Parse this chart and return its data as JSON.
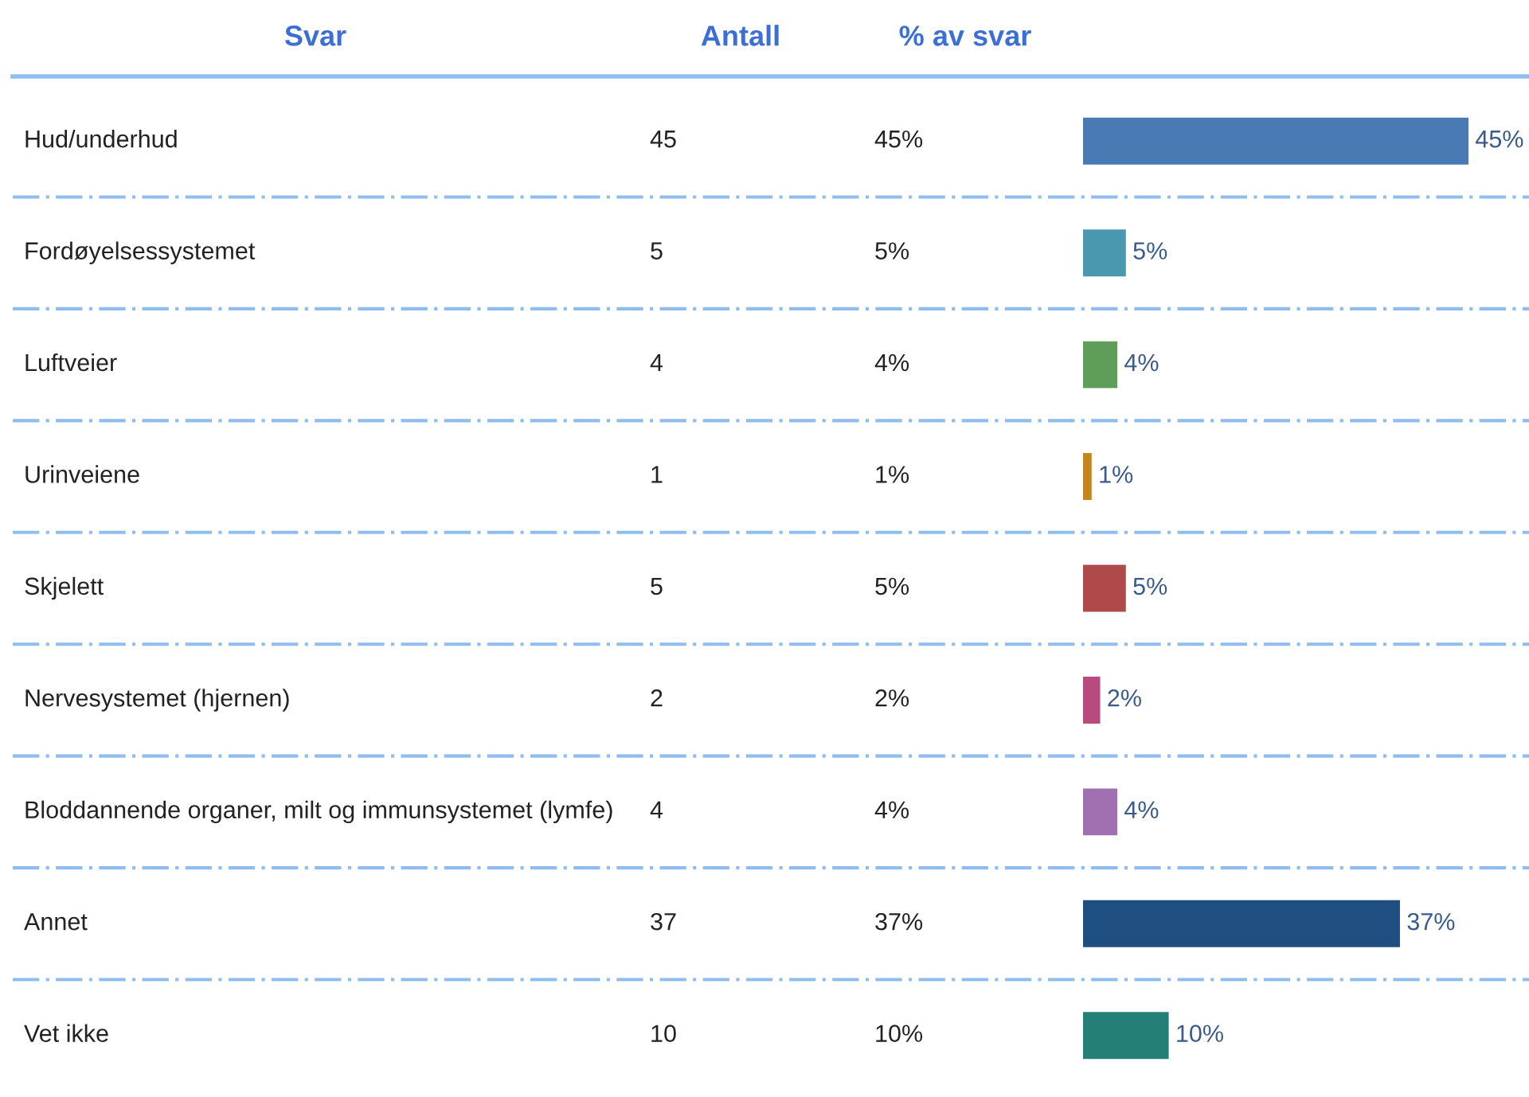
{
  "chart_data": {
    "type": "bar",
    "orientation": "horizontal",
    "ylabel": "Svar",
    "annotations": [
      "Antall",
      "% av svar",
      "45",
      "5",
      "4",
      "1",
      "5",
      "2",
      "4",
      "37",
      "10"
    ],
    "categories": [
      "Hud/underhud",
      "Fordøyelsessystemet",
      "Luftveier",
      "Urinveiene",
      "Skjelett",
      "Nervesystemet (hjernen)",
      "Bloddannende organer, milt og immunsystemet (lymfe)",
      "Annet",
      "Vet ikke"
    ],
    "values": [
      45,
      5,
      4,
      1,
      5,
      2,
      4,
      37,
      10
    ],
    "value_labels": [
      "45%",
      "5%",
      "4%",
      "1%",
      "5%",
      "2%",
      "4%",
      "37%",
      "10%"
    ],
    "colors": [
      "#4a7ab3",
      "#4a97b0",
      "#5e9e5a",
      "#c4851c",
      "#b04a4a",
      "#b84a7e",
      "#a070b0",
      "#1f4e80",
      "#247f76"
    ],
    "xlim": [
      0,
      45
    ],
    "tick_labels": false
  }
}
